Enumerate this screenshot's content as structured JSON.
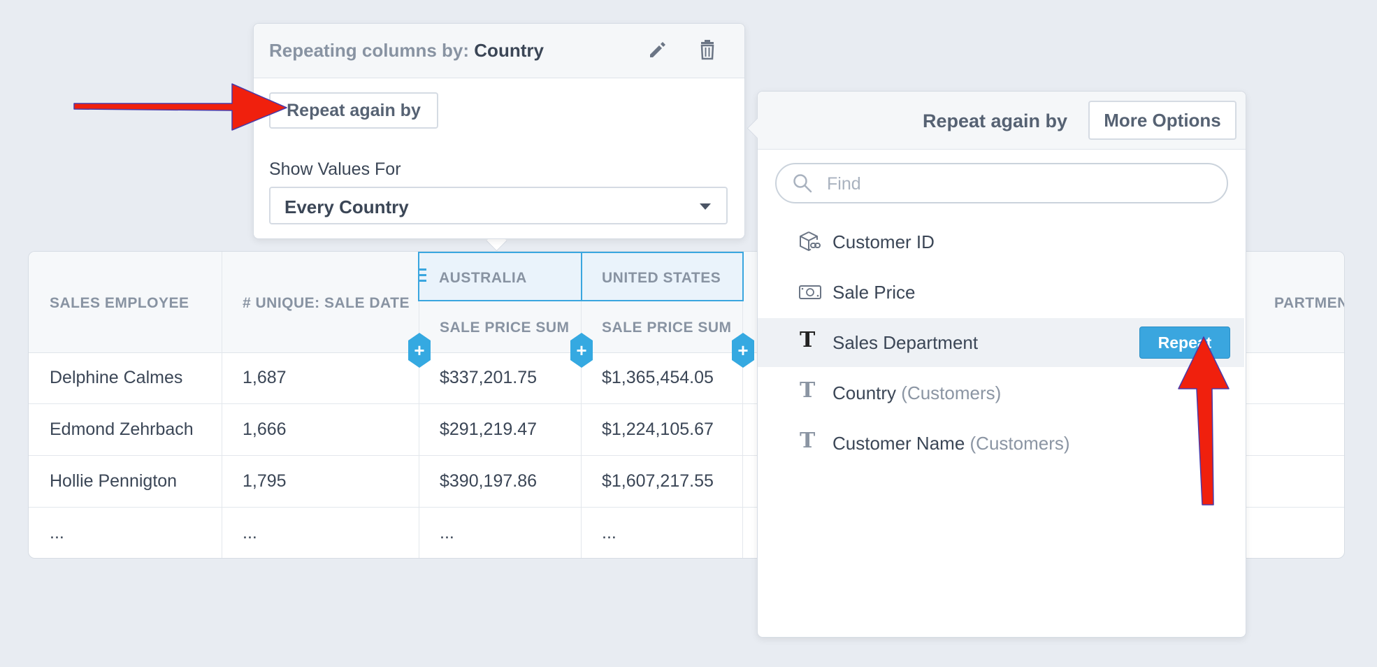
{
  "table": {
    "headers": {
      "sales_employee": "SALES EMPLOYEE",
      "unique_sale_date": "# UNIQUE: SALE DATE",
      "groups": [
        "AUSTRALIA",
        "UNITED STATES"
      ],
      "sub": [
        "SALE PRICE SUM",
        "SALE PRICE SUM"
      ],
      "department_partial": "PARTMENT"
    },
    "rows": [
      [
        "Delphine Calmes",
        "1,687",
        "$337,201.75",
        "$1,365,454.05"
      ],
      [
        "Edmond Zehrbach",
        "1,666",
        "$291,219.47",
        "$1,224,105.67"
      ],
      [
        "Hollie Pennigton",
        "1,795",
        "$390,197.86",
        "$1,607,217.55"
      ],
      [
        "...",
        "...",
        "...",
        "..."
      ]
    ],
    "add_glyph": "+"
  },
  "repeat_popover": {
    "title_prefix": "Repeating columns by:",
    "title_field": "Country",
    "repeat_again_label": "Repeat again by",
    "show_values_label": "Show Values For",
    "show_values_selected": "Every Country"
  },
  "field_picker": {
    "title": "Repeat again by",
    "more_options_label": "More Options",
    "search_placeholder": "Find",
    "fields": [
      {
        "type_icon": "cube-link-icon",
        "label": "Customer ID",
        "sub": ""
      },
      {
        "type_icon": "money-icon",
        "label": "Sale Price",
        "sub": ""
      },
      {
        "type_icon": "text-t-icon",
        "label": "Sales Department",
        "sub": ""
      },
      {
        "type_icon": "text-t-icon",
        "label": "Country",
        "sub": "(Customers)"
      },
      {
        "type_icon": "text-t-icon",
        "label": "Customer Name",
        "sub": "(Customers)"
      }
    ],
    "repeat_button_label": "Repeat"
  },
  "colors": {
    "accent": "#3aa6df",
    "annotation_arrow": "#f0200d",
    "background": "#e8ecf2"
  }
}
